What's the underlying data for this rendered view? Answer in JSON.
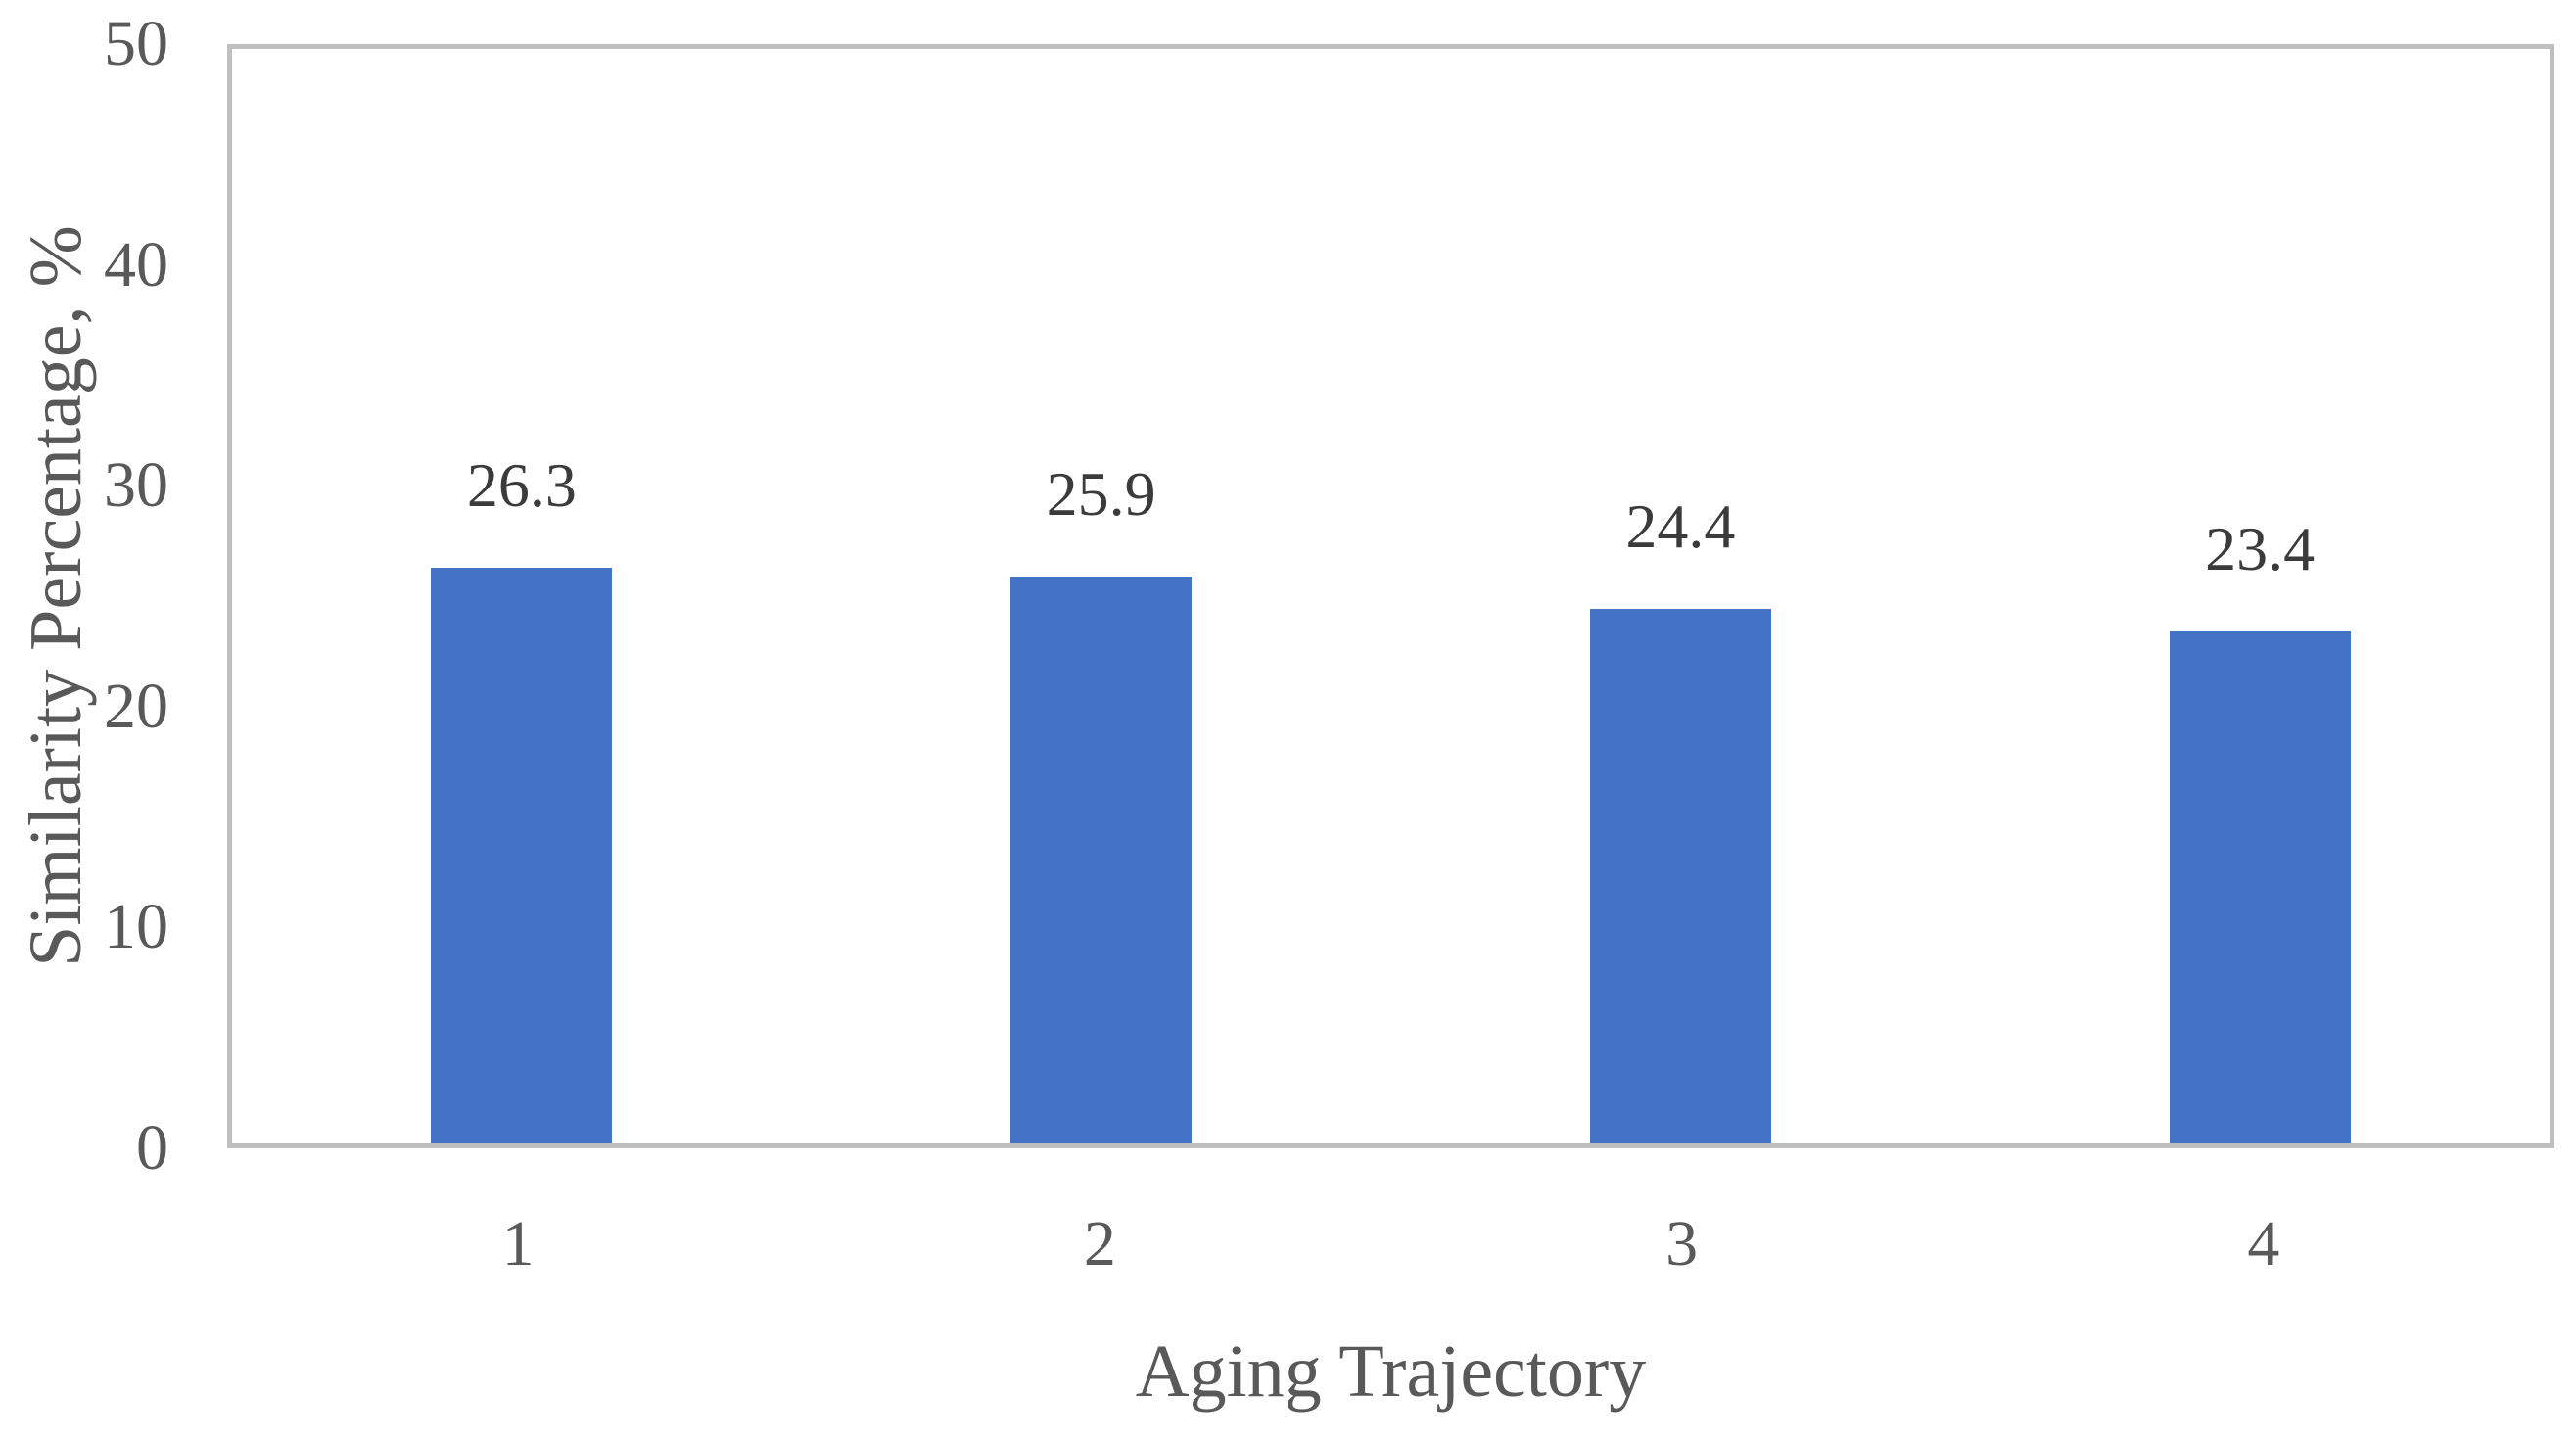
{
  "chart_data": {
    "type": "bar",
    "title": "",
    "xlabel": "Aging Trajectory",
    "ylabel": "Similarity Percentage, %",
    "categories": [
      "1",
      "2",
      "3",
      "4"
    ],
    "values": [
      26.3,
      25.9,
      24.4,
      23.4
    ],
    "data_labels": [
      "26.3",
      "25.9",
      "24.4",
      "23.4"
    ],
    "ylim": [
      0,
      50
    ],
    "y_ticks": [
      50,
      40,
      30,
      20,
      10,
      0
    ],
    "grid": "off",
    "legend": "none",
    "colors": {
      "bar": "#4472c4",
      "frame": "#bfbfbf",
      "tick_label": "#595959",
      "data_label": "#3b3b3b",
      "background": "#ffffff"
    }
  }
}
